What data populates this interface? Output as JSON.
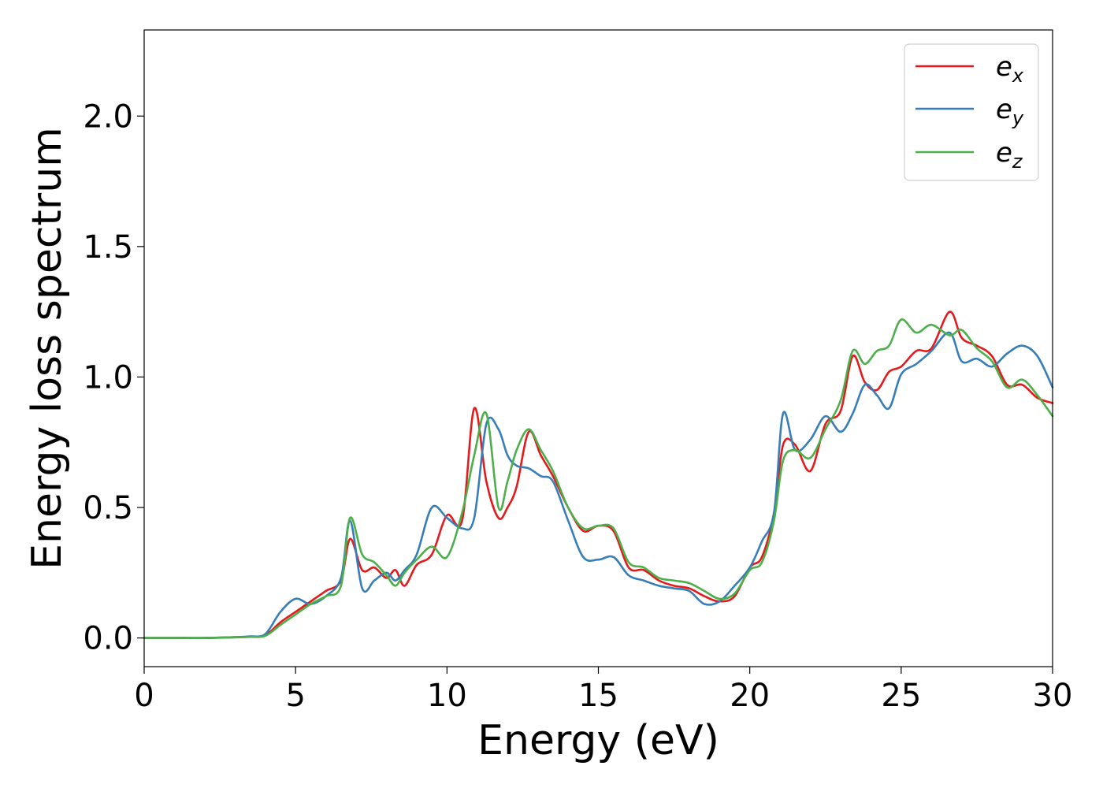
{
  "chart_data": {
    "type": "line",
    "xlabel": "Energy (eV)",
    "ylabel": "Energy loss spectrum",
    "xlim": [
      0,
      30
    ],
    "ylim": [
      -0.11,
      2.33
    ],
    "xticks": [
      0,
      5,
      10,
      15,
      20,
      25,
      30
    ],
    "xtick_labels": [
      "0",
      "5",
      "10",
      "15",
      "20",
      "25",
      "30"
    ],
    "yticks": [
      0.0,
      0.5,
      1.0,
      1.5,
      2.0
    ],
    "ytick_labels": [
      "0.0",
      "0.5",
      "1.0",
      "1.5",
      "2.0"
    ],
    "grid": false,
    "legend_position": "top-right",
    "x": [
      0,
      1,
      2,
      3,
      3.5,
      4,
      4.5,
      5,
      5.5,
      6,
      6.5,
      6.8,
      7.2,
      7.6,
      8,
      8.3,
      8.6,
      9,
      9.5,
      10,
      10.5,
      10.9,
      11.3,
      11.7,
      12,
      12.3,
      12.7,
      13.1,
      13.5,
      14,
      14.5,
      15,
      15.5,
      16,
      16.5,
      17,
      17.5,
      18,
      18.5,
      19,
      19.5,
      20,
      20.4,
      20.8,
      21.1,
      21.5,
      22,
      22.5,
      23,
      23.4,
      23.8,
      24.2,
      24.6,
      25,
      25.5,
      26,
      26.6,
      27,
      27.5,
      28,
      28.5,
      29,
      29.5,
      30
    ],
    "series": [
      {
        "name": "e_x",
        "color": "#e41a1c",
        "values": [
          0,
          0,
          0,
          0.003,
          0.005,
          0.01,
          0.06,
          0.1,
          0.14,
          0.18,
          0.22,
          0.38,
          0.26,
          0.27,
          0.23,
          0.26,
          0.2,
          0.28,
          0.32,
          0.47,
          0.45,
          0.88,
          0.6,
          0.46,
          0.5,
          0.58,
          0.79,
          0.7,
          0.62,
          0.5,
          0.41,
          0.43,
          0.41,
          0.27,
          0.26,
          0.22,
          0.2,
          0.19,
          0.16,
          0.14,
          0.16,
          0.27,
          0.31,
          0.48,
          0.74,
          0.74,
          0.64,
          0.82,
          0.87,
          1.08,
          0.98,
          0.95,
          1.02,
          1.04,
          1.1,
          1.11,
          1.25,
          1.15,
          1.12,
          1.08,
          0.97,
          0.97,
          0.92,
          0.9
        ]
      },
      {
        "name": "e_y",
        "color": "#377eb8",
        "values": [
          0,
          0,
          0,
          0.003,
          0.006,
          0.015,
          0.1,
          0.15,
          0.13,
          0.16,
          0.23,
          0.45,
          0.19,
          0.22,
          0.25,
          0.22,
          0.26,
          0.32,
          0.5,
          0.46,
          0.42,
          0.46,
          0.82,
          0.8,
          0.7,
          0.66,
          0.65,
          0.62,
          0.6,
          0.45,
          0.31,
          0.3,
          0.31,
          0.24,
          0.22,
          0.2,
          0.19,
          0.18,
          0.13,
          0.14,
          0.2,
          0.27,
          0.37,
          0.48,
          0.86,
          0.72,
          0.76,
          0.85,
          0.79,
          0.86,
          0.97,
          0.93,
          0.88,
          1.01,
          1.05,
          1.1,
          1.17,
          1.06,
          1.07,
          1.04,
          1.09,
          1.12,
          1.08,
          0.96
        ]
      },
      {
        "name": "e_z",
        "color": "#4daf4a",
        "values": [
          0,
          0,
          0,
          0.002,
          0.004,
          0.008,
          0.05,
          0.09,
          0.13,
          0.16,
          0.2,
          0.46,
          0.32,
          0.29,
          0.24,
          0.2,
          0.25,
          0.3,
          0.35,
          0.31,
          0.48,
          0.7,
          0.86,
          0.5,
          0.6,
          0.72,
          0.8,
          0.72,
          0.64,
          0.5,
          0.42,
          0.43,
          0.42,
          0.29,
          0.27,
          0.23,
          0.22,
          0.21,
          0.18,
          0.15,
          0.17,
          0.26,
          0.29,
          0.45,
          0.68,
          0.72,
          0.69,
          0.8,
          0.91,
          1.1,
          1.05,
          1.1,
          1.12,
          1.22,
          1.17,
          1.2,
          1.16,
          1.18,
          1.11,
          1.06,
          0.96,
          0.99,
          0.93,
          0.85
        ]
      }
    ]
  },
  "legend": {
    "items": [
      {
        "base": "e",
        "sub": "x",
        "color": "#e41a1c"
      },
      {
        "base": "e",
        "sub": "y",
        "color": "#377eb8"
      },
      {
        "base": "e",
        "sub": "z",
        "color": "#4daf4a"
      }
    ]
  }
}
